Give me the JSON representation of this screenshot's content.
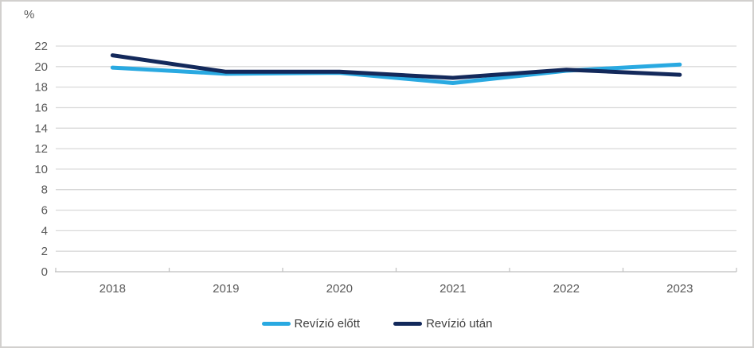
{
  "chart_data": {
    "type": "line",
    "title": "",
    "unit_label": "%",
    "categories": [
      "2018",
      "2019",
      "2020",
      "2021",
      "2022",
      "2023"
    ],
    "series": [
      {
        "name": "Revízió előtt",
        "color": "#29a9e1",
        "values": [
          19.9,
          19.3,
          19.4,
          18.4,
          19.6,
          20.2
        ]
      },
      {
        "name": "Revízió után",
        "color": "#13295b",
        "values": [
          21.1,
          19.5,
          19.5,
          18.9,
          19.7,
          19.2
        ]
      }
    ],
    "y_axis": {
      "min": 0,
      "max": 22,
      "step": 2,
      "tick_labels": [
        "0",
        "2",
        "4",
        "6",
        "8",
        "10",
        "12",
        "14",
        "16",
        "18",
        "20",
        "22"
      ]
    },
    "x_axis_label": "",
    "grid": true,
    "legend_position": "bottom"
  },
  "colors": {
    "gridline": "#d9d9d9",
    "axis": "#bfbfbf",
    "tick_text": "#595959",
    "legend_text": "#404040",
    "background": "#ffffff",
    "border": "#d2d0ce"
  }
}
